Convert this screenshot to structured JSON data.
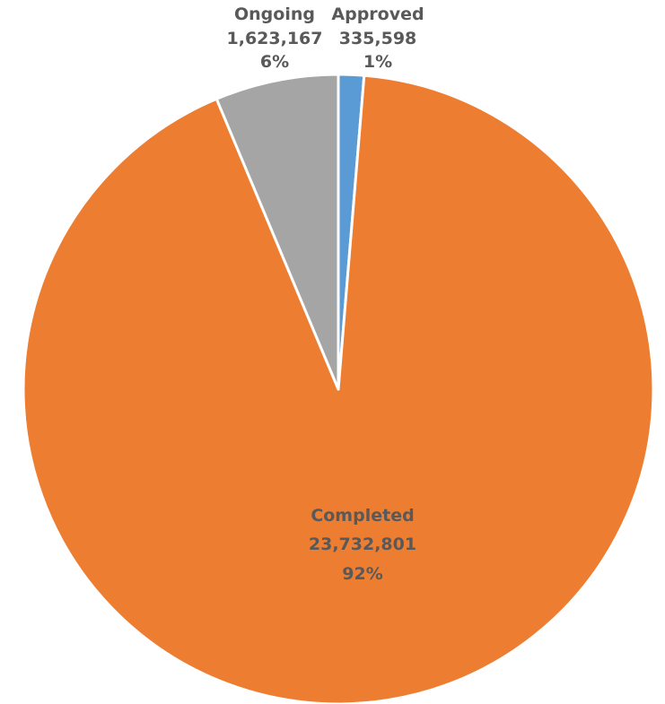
{
  "chart_data": {
    "type": "pie",
    "title": "",
    "start_angle_deg": 0,
    "direction": "clockwise",
    "slices": [
      {
        "label": "Approved",
        "value": 335598,
        "value_label": "335,598",
        "percent_label": "1%",
        "color": "#5b9bd5"
      },
      {
        "label": "Completed",
        "value": 23732801,
        "value_label": "23,732,801",
        "percent_label": "92%",
        "color": "#ed7d31"
      },
      {
        "label": "Ongoing",
        "value": 1623167,
        "value_label": "1,623,167",
        "percent_label": "6%",
        "color": "#a5a5a5"
      }
    ],
    "legend": "none"
  }
}
